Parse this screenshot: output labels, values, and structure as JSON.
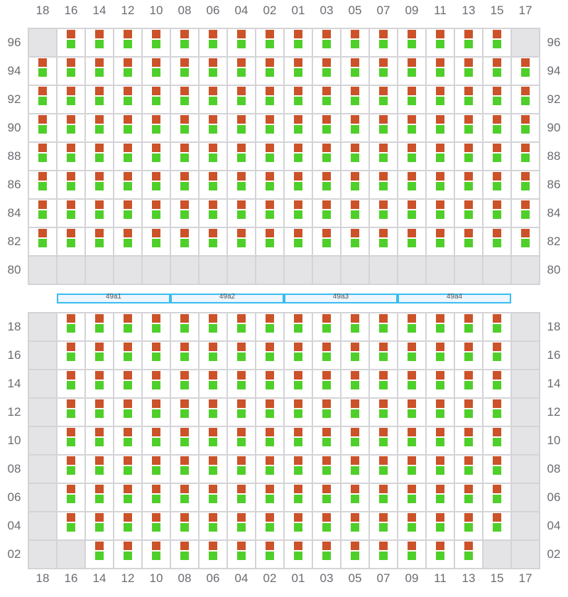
{
  "columns": [
    "18",
    "16",
    "14",
    "12",
    "10",
    "08",
    "06",
    "04",
    "02",
    "01",
    "03",
    "05",
    "07",
    "09",
    "11",
    "13",
    "15",
    "17"
  ],
  "colors": {
    "slot_top": "#cc5229",
    "slot_bottom": "#4fcf2a",
    "empty": "#e4e4e7",
    "segment_border": "#3bbcf0"
  },
  "top_grid": {
    "rows": [
      {
        "label": "96",
        "slots": "011111111111111110"
      },
      {
        "label": "94",
        "slots": "111111111111111111"
      },
      {
        "label": "92",
        "slots": "111111111111111111"
      },
      {
        "label": "90",
        "slots": "111111111111111111"
      },
      {
        "label": "88",
        "slots": "111111111111111111"
      },
      {
        "label": "86",
        "slots": "111111111111111111"
      },
      {
        "label": "84",
        "slots": "111111111111111111"
      },
      {
        "label": "82",
        "slots": "111111111111111111"
      },
      {
        "label": "80",
        "slots": "000000000000000000"
      }
    ]
  },
  "segments": [
    "49a1",
    "49a2",
    "49a3",
    "49a4"
  ],
  "bottom_grid": {
    "rows": [
      {
        "label": "18",
        "slots": "011111111111111110"
      },
      {
        "label": "16",
        "slots": "011111111111111110"
      },
      {
        "label": "14",
        "slots": "011111111111111110"
      },
      {
        "label": "12",
        "slots": "011111111111111110"
      },
      {
        "label": "10",
        "slots": "011111111111111110"
      },
      {
        "label": "08",
        "slots": "011111111111111110"
      },
      {
        "label": "06",
        "slots": "011111111111111110"
      },
      {
        "label": "04",
        "slots": "011111111111111110"
      },
      {
        "label": "02",
        "slots": "001111111111111100"
      }
    ]
  }
}
